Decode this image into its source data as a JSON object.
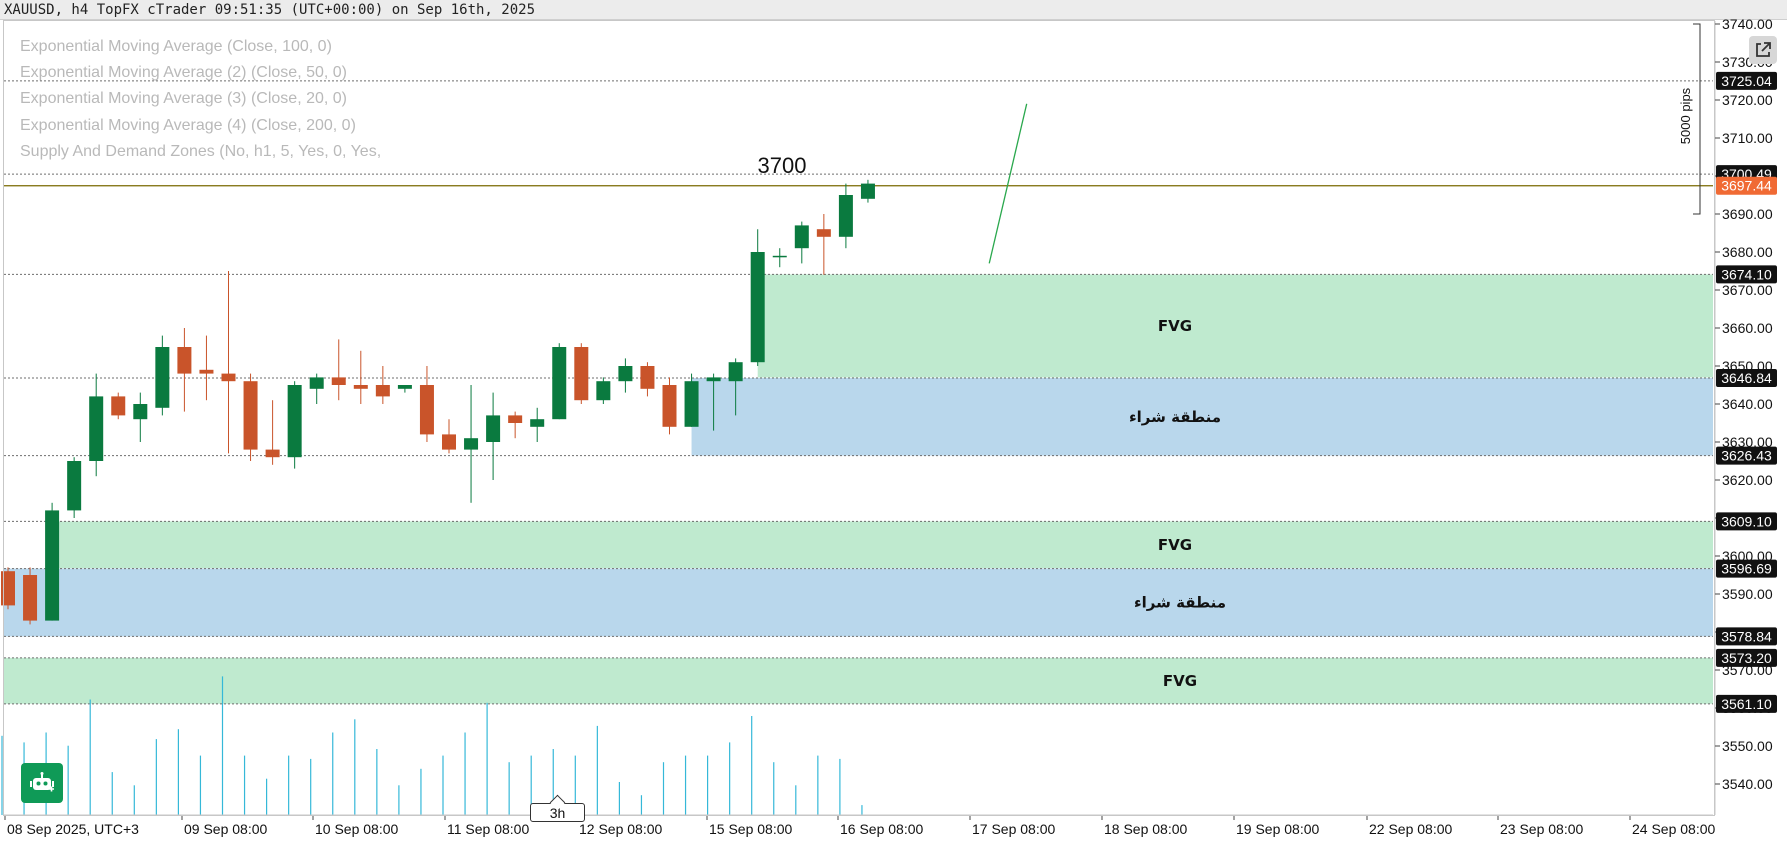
{
  "header": {
    "title": "XAUUSD, h4 TopFX cTrader 09:51:35 (UTC+00:00) on Sep 16th, 2025"
  },
  "legend": {
    "items": [
      "Exponential Moving Average (Close, 100, 0)",
      "Exponential Moving Average (2) (Close, 50, 0)",
      "Exponential Moving Average (3) (Close, 20, 0)",
      "Exponential Moving Average (4) (Close, 200, 0)",
      "Supply And Demand Zones (No, h1, 5, Yes, 0, Yes,"
    ]
  },
  "toolbar": {
    "timeframe_badge": "3h",
    "popout_icon": "external-link-icon",
    "bot_icon": "robot-icon"
  },
  "chart_data": {
    "type": "candlestick",
    "symbol": "XAUUSD",
    "timeframe": "h4",
    "ylim": [
      3536,
      3743
    ],
    "y_ticks": [
      3540,
      3550,
      3560,
      3570,
      3580,
      3590,
      3600,
      3610,
      3620,
      3630,
      3640,
      3650,
      3660,
      3670,
      3680,
      3690,
      3700,
      3710,
      3720,
      3730,
      3740
    ],
    "x_ticks": [
      "08 Sep 2025, UTC+3",
      "09 Sep 08:00",
      "10 Sep 08:00",
      "11 Sep 08:00",
      "12 Sep 08:00",
      "15 Sep 08:00",
      "16 Sep 08:00",
      "17 Sep 08:00",
      "18 Sep 08:00",
      "19 Sep 08:00",
      "22 Sep 08:00",
      "23 Sep 08:00",
      "24 Sep 08:00"
    ],
    "colors": {
      "bull": "#0a7a3f",
      "bear": "#c9542a",
      "volume": "#35b8d8",
      "fvg_fill": "#bfeacf",
      "demand_fill": "#b9d7ec",
      "current_price": "#f06a34",
      "projection": "#2aa84d",
      "price_line": "#7a6a00"
    },
    "candles": [
      {
        "o": 3596,
        "h": 3597,
        "l": 3586,
        "c": 3587
      },
      {
        "o": 3595,
        "h": 3597,
        "l": 3582,
        "c": 3583
      },
      {
        "o": 3583,
        "h": 3614,
        "l": 3583,
        "c": 3612
      },
      {
        "o": 3612,
        "h": 3626,
        "l": 3610,
        "c": 3625
      },
      {
        "o": 3625,
        "h": 3648,
        "l": 3621,
        "c": 3642
      },
      {
        "o": 3642,
        "h": 3643,
        "l": 3636,
        "c": 3637
      },
      {
        "o": 3636,
        "h": 3643,
        "l": 3630,
        "c": 3640
      },
      {
        "o": 3639,
        "h": 3658,
        "l": 3637,
        "c": 3655
      },
      {
        "o": 3655,
        "h": 3660,
        "l": 3638,
        "c": 3648
      },
      {
        "o": 3649,
        "h": 3658,
        "l": 3641,
        "c": 3648
      },
      {
        "o": 3648,
        "h": 3675,
        "l": 3627,
        "c": 3646
      },
      {
        "o": 3646,
        "h": 3648,
        "l": 3625,
        "c": 3628
      },
      {
        "o": 3628,
        "h": 3641,
        "l": 3624,
        "c": 3626
      },
      {
        "o": 3626,
        "h": 3646,
        "l": 3623,
        "c": 3645
      },
      {
        "o": 3644,
        "h": 3648,
        "l": 3640,
        "c": 3647
      },
      {
        "o": 3647,
        "h": 3657,
        "l": 3641,
        "c": 3645
      },
      {
        "o": 3645,
        "h": 3654,
        "l": 3640,
        "c": 3644
      },
      {
        "o": 3645,
        "h": 3650,
        "l": 3640,
        "c": 3642
      },
      {
        "o": 3644,
        "h": 3645,
        "l": 3643,
        "c": 3645
      },
      {
        "o": 3645,
        "h": 3650,
        "l": 3630,
        "c": 3632
      },
      {
        "o": 3632,
        "h": 3636,
        "l": 3627,
        "c": 3628
      },
      {
        "o": 3628,
        "h": 3645,
        "l": 3614,
        "c": 3631
      },
      {
        "o": 3630,
        "h": 3643,
        "l": 3620,
        "c": 3637
      },
      {
        "o": 3637,
        "h": 3638,
        "l": 3631,
        "c": 3635
      },
      {
        "o": 3634,
        "h": 3639,
        "l": 3630,
        "c": 3636
      },
      {
        "o": 3636,
        "h": 3656,
        "l": 3636,
        "c": 3655
      },
      {
        "o": 3655,
        "h": 3656,
        "l": 3640,
        "c": 3641
      },
      {
        "o": 3641,
        "h": 3647,
        "l": 3640,
        "c": 3646
      },
      {
        "o": 3646,
        "h": 3652,
        "l": 3643,
        "c": 3650
      },
      {
        "o": 3650,
        "h": 3651,
        "l": 3642,
        "c": 3644
      },
      {
        "o": 3645,
        "h": 3647,
        "l": 3632,
        "c": 3634
      },
      {
        "o": 3634,
        "h": 3648,
        "l": 3634,
        "c": 3646
      },
      {
        "o": 3646,
        "h": 3648,
        "l": 3633,
        "c": 3647
      },
      {
        "o": 3646,
        "h": 3652,
        "l": 3637,
        "c": 3651
      },
      {
        "o": 3651,
        "h": 3686,
        "l": 3650,
        "c": 3680
      },
      {
        "o": 3679,
        "h": 3681,
        "l": 3676,
        "c": 3679
      },
      {
        "o": 3681,
        "h": 3688,
        "l": 3677,
        "c": 3687
      },
      {
        "o": 3686,
        "h": 3690,
        "l": 3674,
        "c": 3684
      },
      {
        "o": 3684,
        "h": 3698,
        "l": 3681,
        "c": 3695
      },
      {
        "o": 3694,
        "h": 3699,
        "l": 3693,
        "c": 3698
      }
    ],
    "volume": [
      24,
      22,
      25,
      21,
      35,
      13,
      9,
      23,
      26,
      18,
      42,
      18,
      11,
      18,
      17,
      25,
      29,
      20,
      9,
      14,
      18,
      25,
      34,
      16,
      18,
      20,
      18,
      27,
      10,
      6,
      16,
      18,
      18,
      22,
      30,
      16,
      9,
      18,
      17,
      3
    ],
    "zones": [
      {
        "label": "FVG",
        "type": "fvg",
        "top": 3674.1,
        "bottom": 3647.0,
        "start_index": 34
      },
      {
        "label": "منطقة شراء",
        "type": "demand",
        "top": 3646.84,
        "bottom": 3626.43,
        "start_index": 31
      },
      {
        "label": "FVG",
        "type": "fvg",
        "top": 3609.1,
        "bottom": 3596.8,
        "start_index": 2
      },
      {
        "label": "منطقة شراء",
        "type": "demand",
        "top": 3596.69,
        "bottom": 3578.84,
        "start_index": 0
      },
      {
        "label": "FVG",
        "type": "fvg",
        "top": 3573.2,
        "bottom": 3561.1,
        "start_index": 0
      }
    ],
    "price_labels": [
      {
        "value": 3725.04,
        "text": "3725.04",
        "style": "dark"
      },
      {
        "value": 3700.49,
        "text": "3700.49",
        "style": "dark"
      },
      {
        "value": 3697.44,
        "text": "3697.44",
        "style": "current"
      },
      {
        "value": 3674.1,
        "text": "3674.10",
        "style": "dark"
      },
      {
        "value": 3646.84,
        "text": "3646.84",
        "style": "dark"
      },
      {
        "value": 3626.43,
        "text": "3626.43",
        "style": "dark"
      },
      {
        "value": 3609.1,
        "text": "3609.10",
        "style": "dark"
      },
      {
        "value": 3596.69,
        "text": "3596.69",
        "style": "dark"
      },
      {
        "value": 3578.84,
        "text": "3578.84",
        "style": "dark"
      },
      {
        "value": 3573.2,
        "text": "3573.20",
        "style": "dark"
      },
      {
        "value": 3561.1,
        "text": "3561.10",
        "style": "dark"
      }
    ],
    "dotted_levels": [
      3725.04,
      3700.49,
      3674.1,
      3646.84,
      3626.43,
      3609.1,
      3596.69,
      3578.84,
      3573.2,
      3561.1
    ],
    "current_price": 3697.44,
    "annotation": {
      "text": "3700",
      "value": 3700
    },
    "projection_line": {
      "from": {
        "slot": 44.5,
        "price": 3677
      },
      "to": {
        "slot": 46.2,
        "price": 3719
      }
    },
    "range_marker": {
      "text": "5000 pips",
      "top": 3740,
      "bottom": 3690
    }
  }
}
